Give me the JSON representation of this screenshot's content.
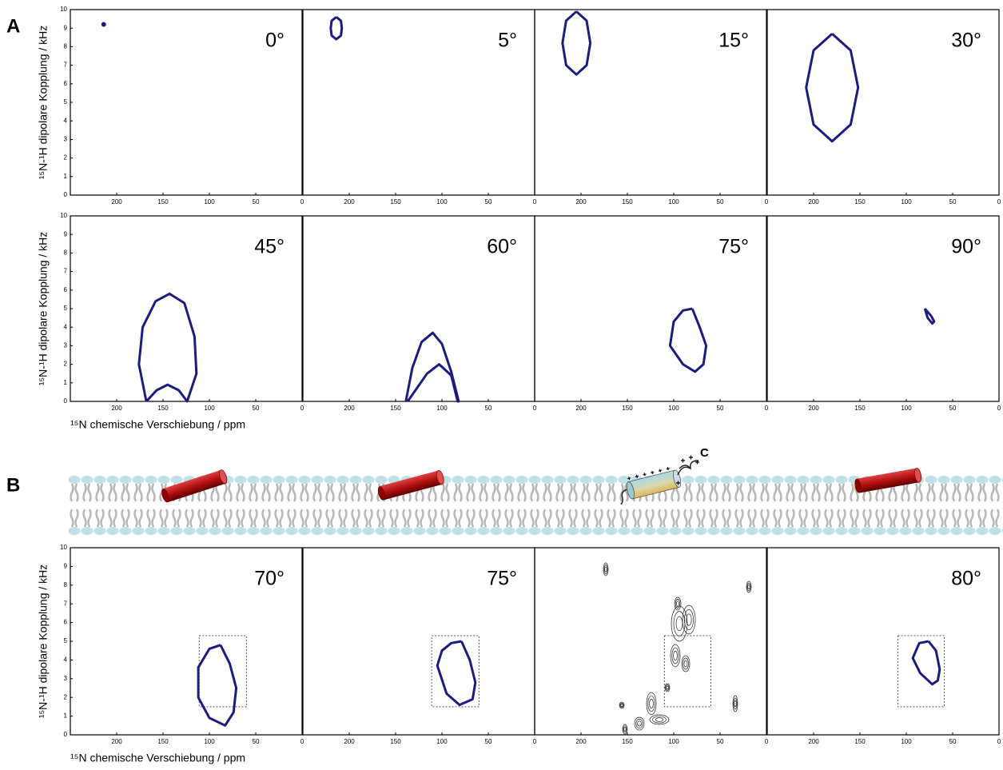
{
  "figure_labels": [
    "A",
    "B"
  ],
  "helix_terminus": "C",
  "chart_data": [
    {
      "type": "scatter",
      "label": "0°",
      "series": [
        {
          "color": "#1c1c80",
          "x": [
            214
          ],
          "y": [
            9.2
          ]
        }
      ],
      "xlim": [
        250,
        0
      ],
      "ylim": [
        0,
        10
      ],
      "xticks": [
        200,
        150,
        100,
        50,
        0
      ],
      "yticks": [
        0,
        1,
        2,
        3,
        4,
        5,
        6,
        7,
        8,
        9,
        10
      ],
      "ylabel": "¹⁵N-¹H dipolare Kopplung / kHz"
    },
    {
      "type": "line",
      "label": "5°",
      "series": [
        {
          "color": "#1c1c80",
          "x": [
            214,
            209,
            208,
            209,
            214,
            219,
            220,
            219,
            214
          ],
          "y": [
            9.6,
            9.4,
            9.0,
            8.6,
            8.4,
            8.6,
            9.0,
            9.4,
            9.6
          ]
        }
      ],
      "xlim": [
        250,
        0
      ],
      "ylim": [
        0,
        10
      ],
      "xticks": [
        200,
        150,
        100,
        50,
        0
      ]
    },
    {
      "type": "line",
      "label": "15°",
      "series": [
        {
          "color": "#1c1c80",
          "x": [
            205,
            194,
            190,
            194,
            205,
            216,
            220,
            216,
            205
          ],
          "y": [
            9.9,
            9.4,
            8.2,
            7.0,
            6.5,
            7.0,
            8.2,
            9.4,
            9.9
          ]
        }
      ],
      "xlim": [
        250,
        0
      ],
      "ylim": [
        0,
        10
      ],
      "xticks": [
        200,
        150,
        100,
        50,
        0
      ]
    },
    {
      "type": "line",
      "label": "30°",
      "series": [
        {
          "color": "#1c1c80",
          "x": [
            180,
            160,
            152,
            160,
            180,
            200,
            208,
            200,
            180
          ],
          "y": [
            8.7,
            7.8,
            5.8,
            3.8,
            2.9,
            3.8,
            5.8,
            7.8,
            8.7
          ]
        }
      ],
      "xlim": [
        250,
        0
      ],
      "ylim": [
        0,
        10
      ],
      "xticks": [
        200,
        150,
        100,
        50,
        0
      ]
    },
    {
      "type": "line",
      "label": "45°",
      "series": [
        {
          "color": "#1c1c80",
          "x": [
            168,
            176,
            172,
            158,
            143,
            127,
            116,
            114,
            124,
            133,
            145,
            157,
            168
          ],
          "y": [
            0,
            2,
            4,
            5.4,
            5.8,
            5.3,
            3.5,
            1.5,
            0,
            0.6,
            0.9,
            0.6,
            0
          ]
        }
      ],
      "xlim": [
        250,
        0
      ],
      "ylim": [
        0,
        10
      ],
      "xticks": [
        200,
        150,
        100,
        50,
        0
      ],
      "yticks": [
        0,
        1,
        2,
        3,
        4,
        5,
        6,
        7,
        8,
        9,
        10
      ],
      "ylabel": "¹⁵N-¹H dipolare Kopplung / kHz",
      "xlabel": "¹⁵N chemische Verschiebung / ppm"
    },
    {
      "type": "line",
      "label": "60°",
      "series": [
        {
          "color": "#1c1c80",
          "x": [
            139,
            132,
            122,
            110,
            100,
            90,
            82,
            83,
            90,
            103,
            116,
            137
          ],
          "y": [
            0,
            1.8,
            3.2,
            3.7,
            3.1,
            1.6,
            0,
            0,
            1.4,
            2.0,
            1.5,
            0
          ]
        }
      ],
      "xlim": [
        250,
        0
      ],
      "ylim": [
        0,
        10
      ],
      "xticks": [
        200,
        150,
        100,
        50,
        0
      ]
    },
    {
      "type": "line",
      "label": "75°",
      "series": [
        {
          "color": "#1c1c80",
          "x": [
            80,
            72,
            65,
            68,
            77,
            90,
            104,
            100,
            90,
            80
          ],
          "y": [
            5.0,
            4.0,
            3.0,
            2.0,
            1.6,
            2.0,
            3.0,
            4.3,
            4.9,
            5.0
          ]
        }
      ],
      "xlim": [
        250,
        0
      ],
      "ylim": [
        0,
        10
      ],
      "xticks": [
        200,
        150,
        100,
        50,
        0
      ]
    },
    {
      "type": "line",
      "label": "90°",
      "series": [
        {
          "color": "#1c1c80",
          "x": [
            80,
            73,
            70,
            72,
            77,
            80
          ],
          "y": [
            5.0,
            4.6,
            4.3,
            4.2,
            4.5,
            5.0
          ]
        }
      ],
      "xlim": [
        250,
        0
      ],
      "ylim": [
        0,
        10
      ],
      "xticks": [
        200,
        150,
        100,
        50,
        0
      ]
    },
    {
      "type": "line",
      "label": "70°",
      "series": [
        {
          "color": "#1c1c80",
          "x": [
            88,
            78,
            71,
            74,
            83,
            100,
            112,
            112,
            100,
            88
          ],
          "y": [
            4.8,
            3.8,
            2.5,
            1.2,
            0.5,
            0.9,
            2.0,
            3.6,
            4.6,
            4.8
          ]
        }
      ],
      "box": {
        "x": [
          111,
          60
        ],
        "y": [
          1.5,
          5.3
        ]
      },
      "xlim": [
        250,
        0
      ],
      "ylim": [
        0,
        10
      ],
      "xticks": [
        200,
        150,
        100,
        50,
        0
      ],
      "yticks": [
        0,
        1,
        2,
        3,
        4,
        5,
        6,
        7,
        8,
        9,
        10
      ],
      "ylabel": "¹⁵N-¹H dipolare Kopplung / kHz",
      "xlabel": "¹⁵N chemische Verschiebung / ppm"
    },
    {
      "type": "line",
      "label": "75°",
      "series": [
        {
          "color": "#1c1c80",
          "x": [
            79,
            70,
            64,
            67,
            81,
            95,
            105,
            100,
            90,
            79
          ],
          "y": [
            5.0,
            4.0,
            2.8,
            1.9,
            1.6,
            2.2,
            3.7,
            4.5,
            4.9,
            5.0
          ]
        }
      ],
      "box": {
        "x": [
          111,
          60
        ],
        "y": [
          1.5,
          5.3
        ]
      },
      "xlim": [
        250,
        0
      ],
      "ylim": [
        0,
        10
      ],
      "xticks": [
        200,
        150,
        100,
        50,
        0
      ]
    },
    {
      "type": "contour",
      "box": {
        "x": [
          110,
          60
        ],
        "y": [
          1.5,
          5.3
        ]
      },
      "xlim": [
        250,
        0
      ],
      "ylim": [
        0,
        10
      ],
      "xticks": [
        200,
        150,
        100,
        50,
        0
      ]
    },
    {
      "type": "line",
      "label": "80°",
      "series": [
        {
          "color": "#1c1c80",
          "x": [
            76,
            68,
            64,
            66,
            72,
            85,
            93,
            86,
            76
          ],
          "y": [
            5.0,
            4.5,
            3.5,
            2.9,
            2.7,
            3.3,
            4.1,
            4.9,
            5.0
          ]
        }
      ],
      "box": {
        "x": [
          109,
          59
        ],
        "y": [
          1.5,
          5.3
        ]
      },
      "xlim": [
        250,
        0
      ],
      "ylim": [
        0,
        10
      ],
      "xticks": [
        200,
        150,
        100,
        50,
        0
      ]
    }
  ]
}
